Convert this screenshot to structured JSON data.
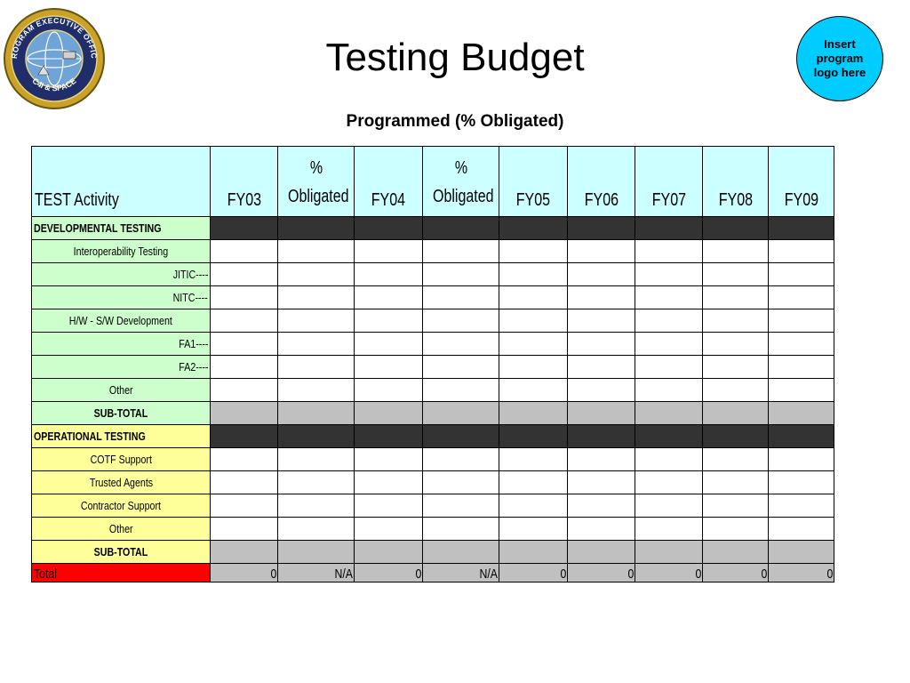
{
  "header": {
    "title": "Testing Budget",
    "subtitle": "Programmed (% Obligated)",
    "logo_placeholder": "Insert program logo here"
  },
  "seal": {
    "text_top": "PROGRAM EXECUTIVE OFFICE",
    "text_bottom": "C4I & SPACE"
  },
  "table": {
    "columns": [
      "TEST Activity",
      "FY03",
      "% Obligated",
      "FY04",
      "% Obligated",
      "FY05",
      "FY06",
      "FY07",
      "FY08",
      "FY09"
    ],
    "rows": [
      {
        "label": "DEVELOPMENTAL TESTING",
        "kind": "section",
        "group": "green"
      },
      {
        "label": "Interoperability Testing",
        "kind": "item",
        "group": "green",
        "align": "center"
      },
      {
        "label": "JITIC----",
        "kind": "item",
        "group": "green",
        "align": "right"
      },
      {
        "label": "NITC----",
        "kind": "item",
        "group": "green",
        "align": "right"
      },
      {
        "label": "H/W - S/W Development",
        "kind": "item",
        "group": "green",
        "align": "center"
      },
      {
        "label": "FA1----",
        "kind": "item",
        "group": "green",
        "align": "right"
      },
      {
        "label": "FA2----",
        "kind": "item",
        "group": "green",
        "align": "right"
      },
      {
        "label": "Other",
        "kind": "item",
        "group": "green",
        "align": "center"
      },
      {
        "label": "SUB-TOTAL",
        "kind": "subtotal",
        "group": "green"
      },
      {
        "label": "OPERATIONAL TESTING",
        "kind": "section",
        "group": "yellow"
      },
      {
        "label": "COTF Support",
        "kind": "item",
        "group": "yellow",
        "align": "center"
      },
      {
        "label": "Trusted Agents",
        "kind": "item",
        "group": "yellow",
        "align": "center"
      },
      {
        "label": "Contractor Support",
        "kind": "item",
        "group": "yellow",
        "align": "center"
      },
      {
        "label": "Other",
        "kind": "item",
        "group": "yellow",
        "align": "center"
      },
      {
        "label": "SUB-TOTAL",
        "kind": "subtotal",
        "group": "yellow"
      }
    ],
    "total": {
      "label": "Total",
      "values": [
        "0",
        "N/A",
        "0",
        "N/A",
        "0",
        "0",
        "0",
        "0",
        "0"
      ]
    }
  },
  "colors": {
    "header_bg": "#ccffff",
    "dev_bg": "#ccffcc",
    "op_bg": "#ffff99",
    "total_bg": "#ff0000",
    "section_bar": "#333333",
    "subtotal_bar": "#c0c0c0",
    "logo_placeholder_bg": "#00ccff"
  }
}
